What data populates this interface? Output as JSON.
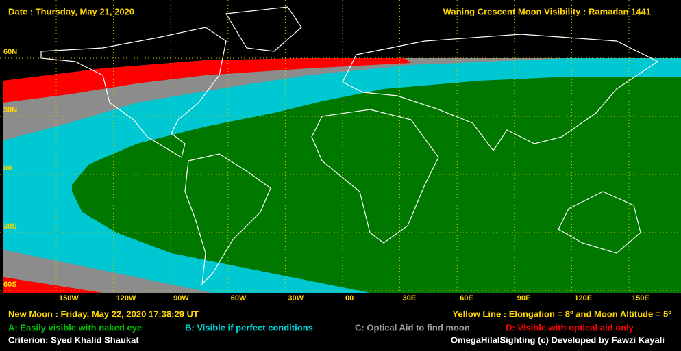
{
  "header": {
    "date": "Date : Thursday, May 21, 2020",
    "title": "Waning Crescent Moon Visibility : Ramadan 1441"
  },
  "map": {
    "lat_labels": [
      "60N",
      "30N",
      "00",
      "30S",
      "60S"
    ],
    "lon_labels": [
      "150W",
      "120W",
      "90W",
      "60W",
      "30W",
      "00",
      "30E",
      "60E",
      "90E",
      "120E",
      "150E"
    ]
  },
  "footer": {
    "new_moon": "New Moon : Friday, May 22, 2020  17:38:29  UT",
    "yellow_line": "Yellow Line : Elongation = 8º  and Moon Altitude = 5º",
    "legend": [
      "A: Easily visible with naked eye",
      "B: Visible if perfect conditions",
      "C: Optical Aid to find moon",
      "D: Visible with optical aid only"
    ],
    "criterion": "Criterion: Syed Khalid Shaukat",
    "credit": "OmegaHilalSighting  (c)  Developed by Fawzi Kayali"
  }
}
